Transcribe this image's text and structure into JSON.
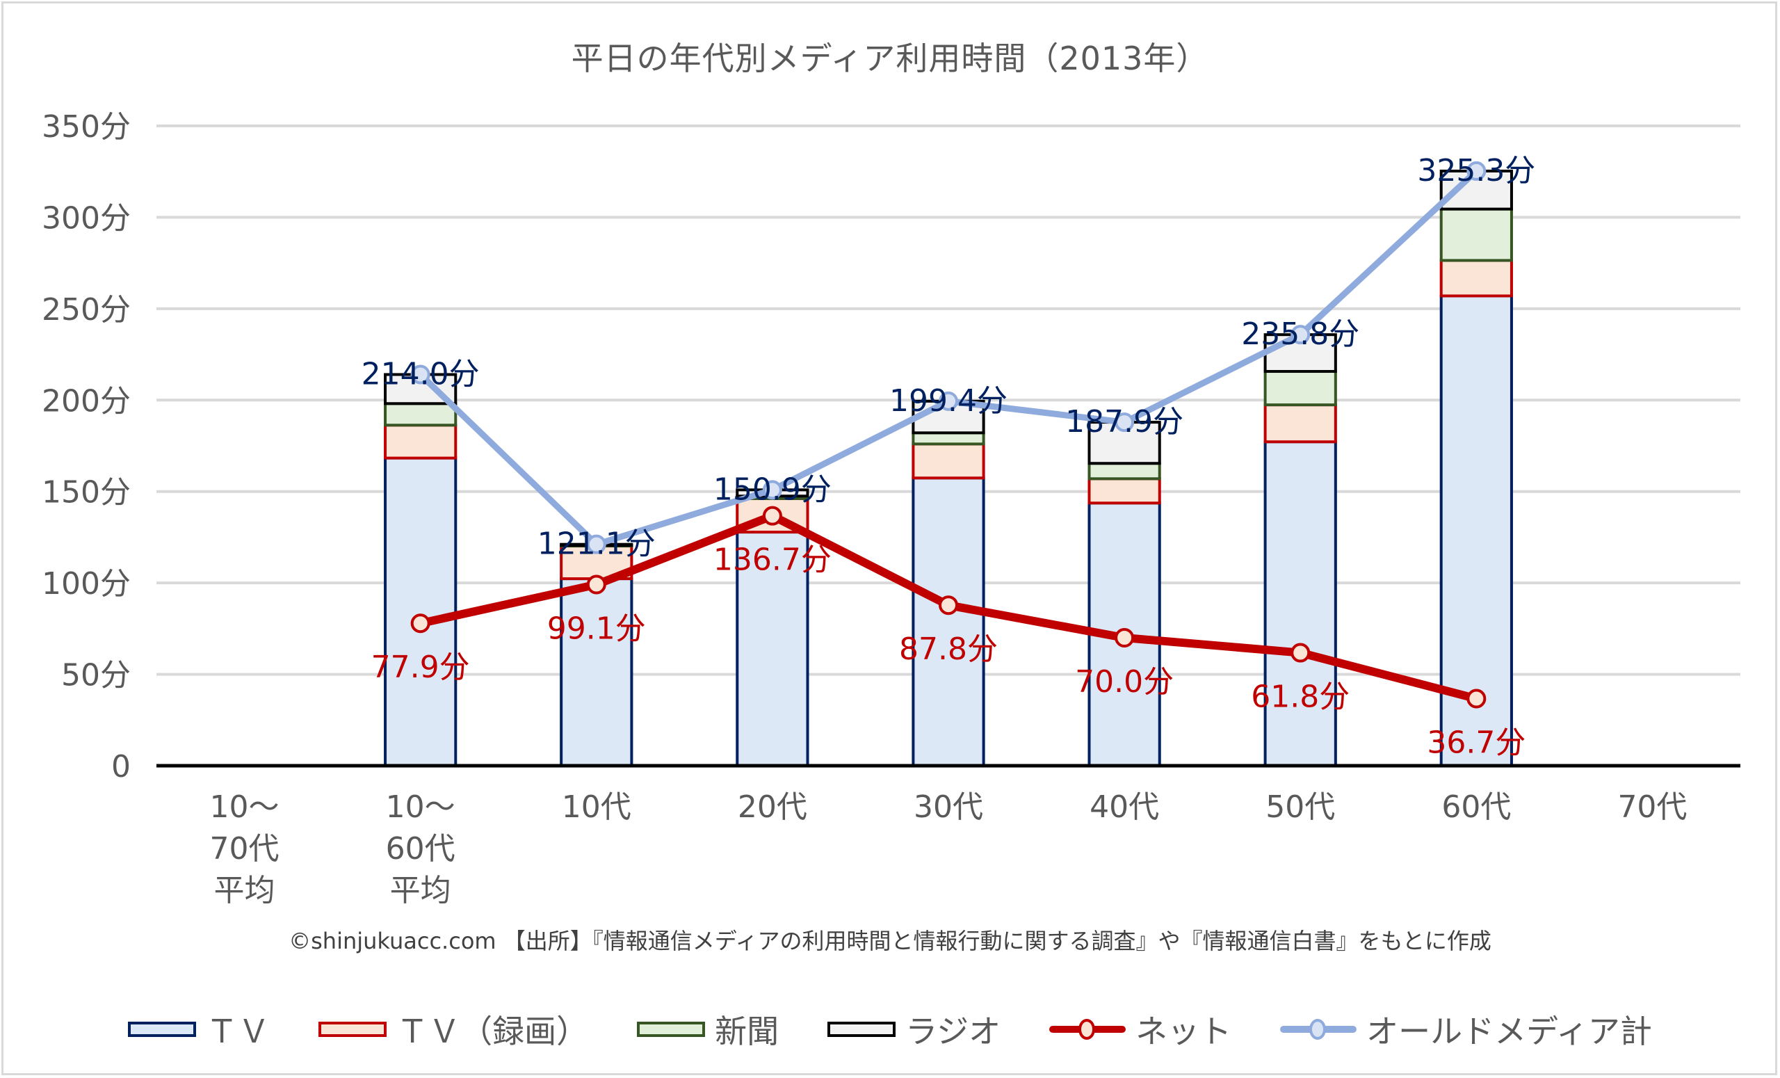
{
  "title": "平日の年代別メディア利用時間（2013年）",
  "source_note": "©shinjukuacc.com 【出所】『情報通信メディアの利用時間と情報行動に関する調査』や『情報通信白書』をもとに作成",
  "colors": {
    "tv_fill": "#dce8f5",
    "tv_border": "#002060",
    "rec_fill": "#fbe5d6",
    "rec_border": "#c00000",
    "news_fill": "#e2efda",
    "news_border": "#375623",
    "radio_fill": "#f2f2f2",
    "radio_border": "#000000",
    "net_line": "#c00000",
    "net_marker_fill": "#fbe5d6",
    "old_line": "#8faadc",
    "old_marker_fill": "#dae3f3",
    "old_label": "#002060",
    "net_label": "#c00000",
    "grid": "#d9d9d9",
    "axis_text": "#595959"
  },
  "chart_data": {
    "type": "bar",
    "stacked": true,
    "title": "平日の年代別メディア利用時間（2013年）",
    "xlabel": "",
    "ylabel": "",
    "ylim": [
      0,
      350
    ],
    "yticks": [
      0,
      50,
      100,
      150,
      200,
      250,
      300,
      350
    ],
    "ytick_labels": [
      "0",
      "50分",
      "100分",
      "150分",
      "200分",
      "250分",
      "300分",
      "350分"
    ],
    "grid": true,
    "legend_position": "bottom",
    "categories": [
      [
        "10～",
        "70代",
        "平均"
      ],
      [
        "10～",
        "60代",
        "平均"
      ],
      [
        "10代"
      ],
      [
        "20代"
      ],
      [
        "30代"
      ],
      [
        "40代"
      ],
      [
        "50代"
      ],
      [
        "60代"
      ],
      [
        "70代"
      ]
    ],
    "series": [
      {
        "name": "ＴＶ",
        "kind": "bar",
        "values": [
          null,
          168.3,
          102.3,
          127.8,
          157.4,
          143.7,
          177.2,
          257.0,
          null
        ]
      },
      {
        "name": "ＴＶ（録画）",
        "kind": "bar",
        "values": [
          null,
          18.0,
          17.9,
          18.3,
          18.6,
          13.3,
          20.2,
          19.4,
          null
        ]
      },
      {
        "name": "新聞",
        "kind": "bar",
        "values": [
          null,
          11.8,
          0.3,
          1.4,
          6.1,
          8.4,
          18.3,
          28.1,
          null
        ]
      },
      {
        "name": "ラジオ",
        "kind": "bar",
        "values": [
          null,
          15.9,
          0.6,
          3.4,
          17.3,
          22.5,
          20.1,
          20.8,
          null
        ]
      },
      {
        "name": "ネット",
        "kind": "line",
        "values": [
          null,
          77.9,
          99.1,
          136.7,
          87.8,
          70.0,
          61.8,
          36.7,
          null
        ],
        "labels": [
          null,
          "77.9分",
          "99.1分",
          "136.7分",
          "87.8分",
          "70.0分",
          "61.8分",
          "36.7分",
          null
        ]
      },
      {
        "name": "オールドメディア計",
        "kind": "line",
        "values": [
          null,
          214.0,
          121.1,
          150.9,
          199.4,
          187.9,
          235.8,
          325.3,
          null
        ],
        "labels": [
          null,
          "214.0分",
          "121.1分",
          "150.9分",
          "199.4分",
          "187.9分",
          "235.8分",
          "325.3分",
          null
        ]
      }
    ]
  },
  "legend": [
    {
      "label": "ＴＶ",
      "icon": "tv-swatch"
    },
    {
      "label": "ＴＶ（録画）",
      "icon": "tv-recorded-swatch"
    },
    {
      "label": "新聞",
      "icon": "newspaper-swatch"
    },
    {
      "label": "ラジオ",
      "icon": "radio-swatch"
    },
    {
      "label": "ネット",
      "icon": "net-line-marker"
    },
    {
      "label": "オールドメディア計",
      "icon": "old-media-line-marker"
    }
  ]
}
